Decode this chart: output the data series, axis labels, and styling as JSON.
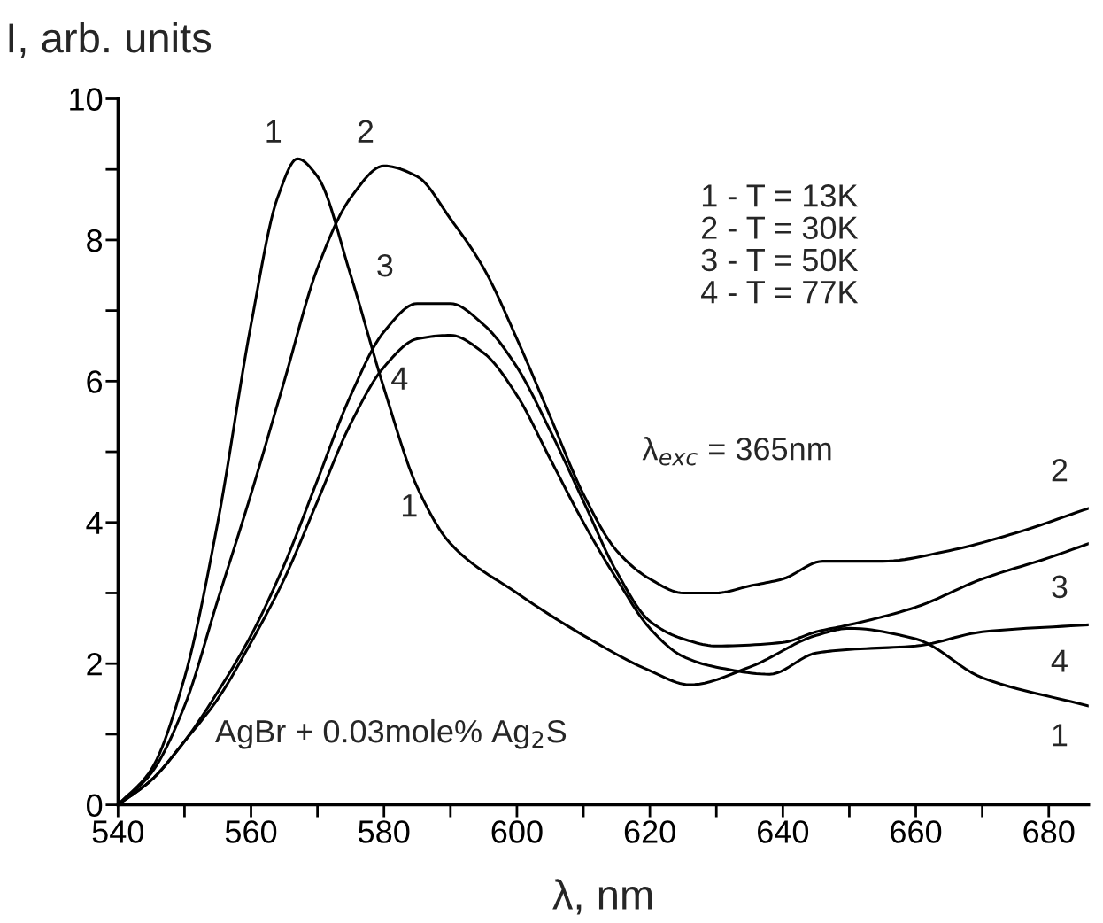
{
  "chart_data": {
    "type": "line",
    "xlabel": "λ, nm",
    "ylabel": "I, arb. units",
    "xlim": [
      540,
      686
    ],
    "ylim": [
      0,
      10
    ],
    "xticks": [
      540,
      {
        "value": 550,
        "label": null
      },
      560,
      {
        "value": 570,
        "label": null
      },
      580,
      {
        "value": 590,
        "label": null
      },
      600,
      {
        "value": 610,
        "label": null
      },
      620,
      {
        "value": 630,
        "label": null
      },
      640,
      {
        "value": 650,
        "label": null
      },
      660,
      {
        "value": 670,
        "label": null
      },
      680
    ],
    "yticks": [
      0,
      {
        "value": 1,
        "label": null
      },
      2,
      {
        "value": 3,
        "label": null
      },
      4,
      {
        "value": 5,
        "label": null
      },
      6,
      {
        "value": 7,
        "label": null
      },
      8,
      {
        "value": 9,
        "label": null
      },
      10
    ],
    "grid": false,
    "legend": false,
    "marker": "none",
    "line_style": "solid",
    "series": [
      {
        "color": "#000000",
        "x": [
          540,
          545,
          550,
          555,
          560,
          564,
          567,
          570,
          575,
          580,
          585,
          590,
          600,
          610,
          620,
          626,
          635,
          645,
          650,
          660,
          670,
          686
        ],
        "values": [
          0,
          0.5,
          1.8,
          4.0,
          6.8,
          8.6,
          9.15,
          8.9,
          7.5,
          5.9,
          4.5,
          3.7,
          3.0,
          2.4,
          1.9,
          1.7,
          1.95,
          2.4,
          2.5,
          2.35,
          1.8,
          1.4
        ]
      },
      {
        "color": "#000000",
        "x": [
          540,
          545,
          550,
          555,
          560,
          565,
          570,
          575,
          580,
          585,
          590,
          595,
          600,
          605,
          610,
          615,
          620,
          625,
          630,
          635,
          640,
          646,
          655,
          665,
          675,
          686
        ],
        "values": [
          0,
          0.45,
          1.4,
          2.9,
          4.4,
          6.0,
          7.6,
          8.6,
          9.05,
          8.9,
          8.3,
          7.6,
          6.6,
          5.5,
          4.4,
          3.6,
          3.2,
          3.0,
          3.0,
          3.1,
          3.2,
          3.45,
          3.45,
          3.6,
          3.85,
          4.2
        ]
      },
      {
        "color": "#000000",
        "x": [
          540,
          545,
          550,
          555,
          560,
          565,
          570,
          575,
          580,
          585,
          590,
          595,
          600,
          605,
          610,
          615,
          620,
          625,
          630,
          640,
          645,
          650,
          660,
          670,
          680,
          686
        ],
        "values": [
          0,
          0.35,
          0.9,
          1.6,
          2.4,
          3.4,
          4.6,
          5.8,
          6.7,
          7.1,
          7.1,
          6.8,
          6.2,
          5.3,
          4.3,
          3.3,
          2.6,
          2.35,
          2.25,
          2.3,
          2.45,
          2.55,
          2.8,
          3.2,
          3.5,
          3.7
        ]
      },
      {
        "color": "#000000",
        "x": [
          540,
          545,
          550,
          555,
          560,
          565,
          570,
          575,
          580,
          585,
          590,
          595,
          600,
          605,
          610,
          615,
          620,
          625,
          630,
          638,
          645,
          650,
          660,
          670,
          686
        ],
        "values": [
          0,
          0.35,
          0.9,
          1.5,
          2.3,
          3.2,
          4.3,
          5.4,
          6.2,
          6.6,
          6.65,
          6.4,
          5.8,
          4.9,
          4.0,
          3.2,
          2.5,
          2.1,
          1.95,
          1.85,
          2.15,
          2.2,
          2.25,
          2.45,
          2.55
        ]
      }
    ],
    "annotations": [
      "1",
      "2",
      "3",
      "4",
      "1",
      "2",
      "3",
      "4",
      "1",
      "1 - T = 13K\n2 - T = 30K\n3 - T = 50K\n4 - T = 77K",
      "λ$_{exc}$ = 365nm",
      "AgBr + 0.03mole% Ag$_{2}$S"
    ]
  }
}
